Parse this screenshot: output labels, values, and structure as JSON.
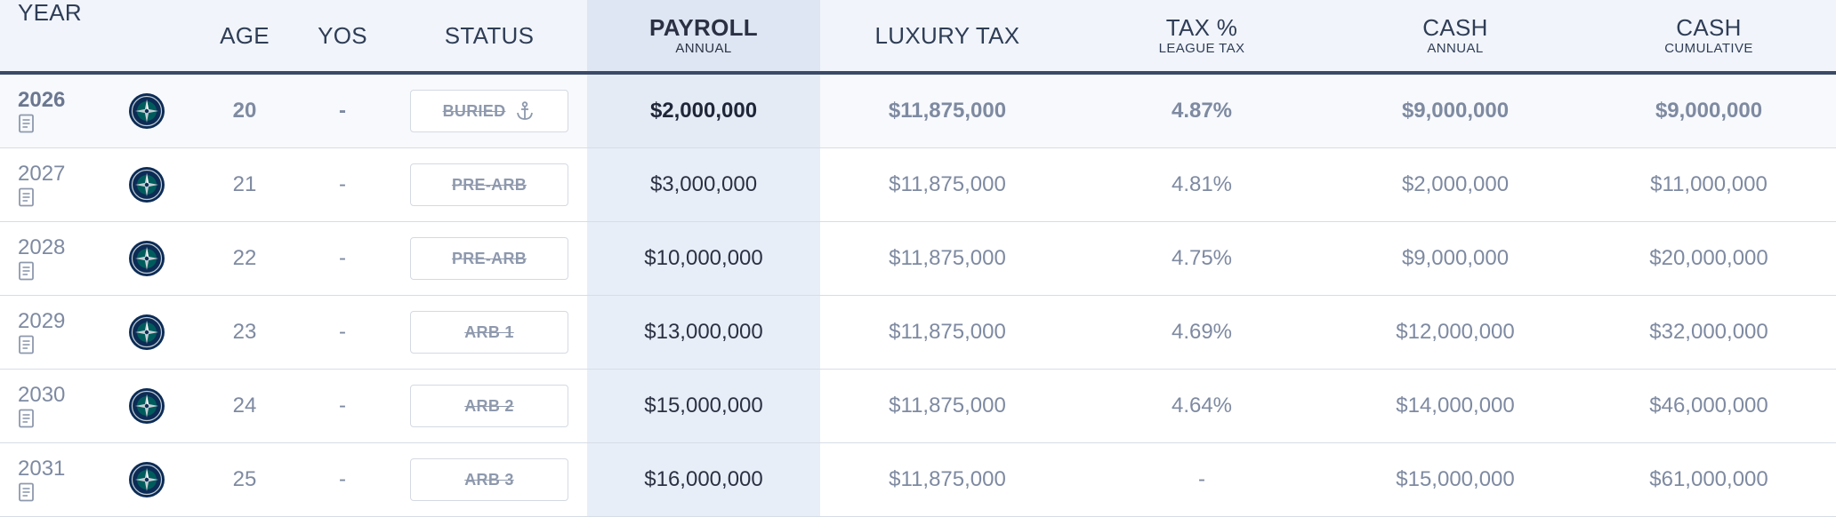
{
  "headers": {
    "year": "YEAR",
    "age": "AGE",
    "yos": "YOS",
    "status": "STATUS",
    "payroll": "PAYROLL",
    "payroll_sub": "ANNUAL",
    "luxury_tax": "LUXURY TAX",
    "tax_pct": "TAX %",
    "tax_pct_sub": "LEAGUE TAX",
    "cash": "CASH",
    "cash_sub": "ANNUAL",
    "cash_cum": "CASH",
    "cash_cum_sub": "CUMULATIVE"
  },
  "rows": [
    {
      "year": "2026",
      "age": "20",
      "yos": "-",
      "status": "BURIED",
      "payroll": "$2,000,000",
      "luxury_tax": "$11,875,000",
      "tax_pct": "4.87%",
      "cash": "$9,000,000",
      "cash_cum": "$9,000,000"
    },
    {
      "year": "2027",
      "age": "21",
      "yos": "-",
      "status": "PRE-ARB",
      "payroll": "$3,000,000",
      "luxury_tax": "$11,875,000",
      "tax_pct": "4.81%",
      "cash": "$2,000,000",
      "cash_cum": "$11,000,000"
    },
    {
      "year": "2028",
      "age": "22",
      "yos": "-",
      "status": "PRE-ARB",
      "payroll": "$10,000,000",
      "luxury_tax": "$11,875,000",
      "tax_pct": "4.75%",
      "cash": "$9,000,000",
      "cash_cum": "$20,000,000"
    },
    {
      "year": "2029",
      "age": "23",
      "yos": "-",
      "status": "ARB 1",
      "payroll": "$13,000,000",
      "luxury_tax": "$11,875,000",
      "tax_pct": "4.69%",
      "cash": "$12,000,000",
      "cash_cum": "$32,000,000"
    },
    {
      "year": "2030",
      "age": "24",
      "yos": "-",
      "status": "ARB 2",
      "payroll": "$15,000,000",
      "luxury_tax": "$11,875,000",
      "tax_pct": "4.64%",
      "cash": "$14,000,000",
      "cash_cum": "$46,000,000"
    },
    {
      "year": "2031",
      "age": "25",
      "yos": "-",
      "status": "ARB 3",
      "payroll": "$16,000,000",
      "luxury_tax": "$11,875,000",
      "tax_pct": "-",
      "cash": "$15,000,000",
      "cash_cum": "$61,000,000"
    }
  ],
  "icons": {
    "team_logo": "mariners-compass-logo-icon",
    "doc": "document-icon",
    "anchor": "anchor-icon"
  },
  "colors": {
    "header_bg": "#f1f5fb",
    "payroll_highlight": "#e8eef7",
    "header_border": "#3a4a66",
    "team_navy": "#0c2c56",
    "team_teal": "#005c5c"
  }
}
